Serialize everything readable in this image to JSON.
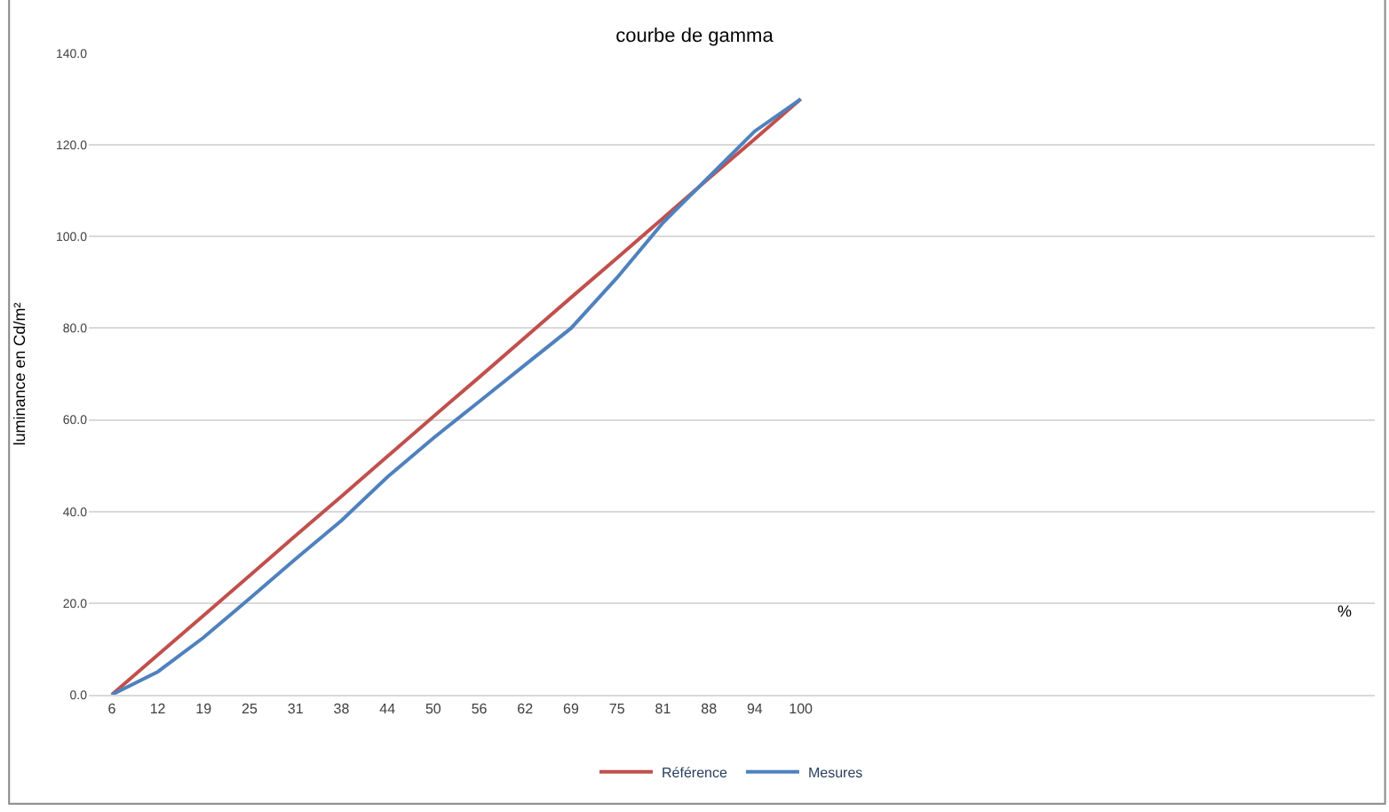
{
  "chart_data": {
    "type": "line",
    "title": "courbe de gamma",
    "ylabel": "luminance en Cd/m²",
    "categories": [
      "6",
      "12",
      "19",
      "25",
      "31",
      "38",
      "44",
      "50",
      "56",
      "62",
      "69",
      "75",
      "81",
      "88",
      "94",
      "100",
      null,
      null,
      null,
      null,
      null,
      null,
      null,
      null,
      null,
      null,
      null,
      null
    ],
    "series": [
      {
        "name": "Référence",
        "color": "#c0504d",
        "values": [
          0,
          8.7,
          17.3,
          26,
          34.7,
          43.3,
          52,
          60.7,
          69.3,
          78,
          86.7,
          95.3,
          104,
          112.7,
          121.3,
          130,
          null,
          null,
          null,
          null,
          null,
          null,
          null,
          null,
          null,
          null,
          null,
          null
        ]
      },
      {
        "name": "Mesures",
        "color": "#4f81bd",
        "values": [
          0,
          5,
          12.5,
          21,
          29.6,
          38,
          47.5,
          56,
          64,
          72,
          80,
          91,
          103,
          113,
          123,
          130,
          null,
          null,
          null,
          null,
          null,
          null,
          null,
          null,
          null,
          null,
          null,
          null
        ]
      }
    ],
    "ylim": [
      0,
      140
    ],
    "yticks": [
      {
        "value": 0,
        "label": "0.0"
      },
      {
        "value": 20,
        "label": "20.0"
      },
      {
        "value": 40,
        "label": "40.0"
      },
      {
        "value": 60,
        "label": "60.0"
      },
      {
        "value": 80,
        "label": "80.0"
      },
      {
        "value": 100,
        "label": "100.0"
      },
      {
        "value": 120,
        "label": "120.0"
      },
      {
        "value": 140,
        "label": "140.0"
      }
    ],
    "grid": "y",
    "legend": "bottom",
    "marker": "none",
    "line_style": "solid",
    "annotations": [
      "%"
    ]
  }
}
